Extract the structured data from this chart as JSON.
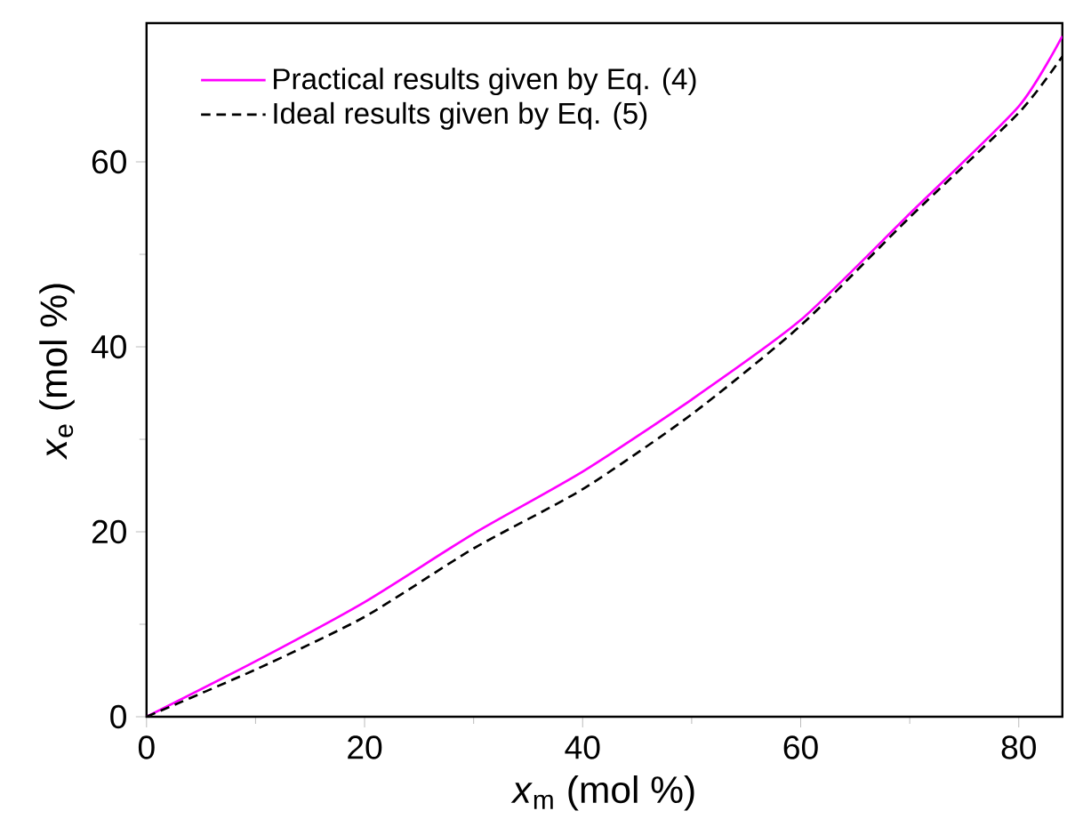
{
  "chart_data": {
    "type": "line",
    "xlabel": "*x*$_{m}$ (mol %)",
    "ylabel": "*x*$_{e}$ (mol %)",
    "xlim": [
      0,
      84
    ],
    "ylim": [
      0,
      75
    ],
    "xticks": [
      0,
      20,
      40,
      60,
      80
    ],
    "yticks": [
      0,
      20,
      40,
      60
    ],
    "grid": false,
    "legend": "top left",
    "series": [
      {
        "name": "Practical results given by Eq. (4)",
        "color": "#ff00ff",
        "line_style": "solid",
        "x": [
          0,
          10,
          20,
          30,
          40,
          50,
          60,
          70,
          80,
          84
        ],
        "values": [
          0,
          6.0,
          12.4,
          19.8,
          26.5,
          34.3,
          42.9,
          54.4,
          66.0,
          73.6
        ]
      },
      {
        "name": "Ideal results given by Eq. (5)",
        "color": "#000000",
        "line_style": "dashed",
        "x": [
          0,
          10,
          20,
          30,
          40,
          50,
          60,
          70,
          80,
          84
        ],
        "values": [
          0,
          5.1,
          10.8,
          18.2,
          24.6,
          32.7,
          42.3,
          54.0,
          65.3,
          71.4
        ]
      }
    ]
  }
}
